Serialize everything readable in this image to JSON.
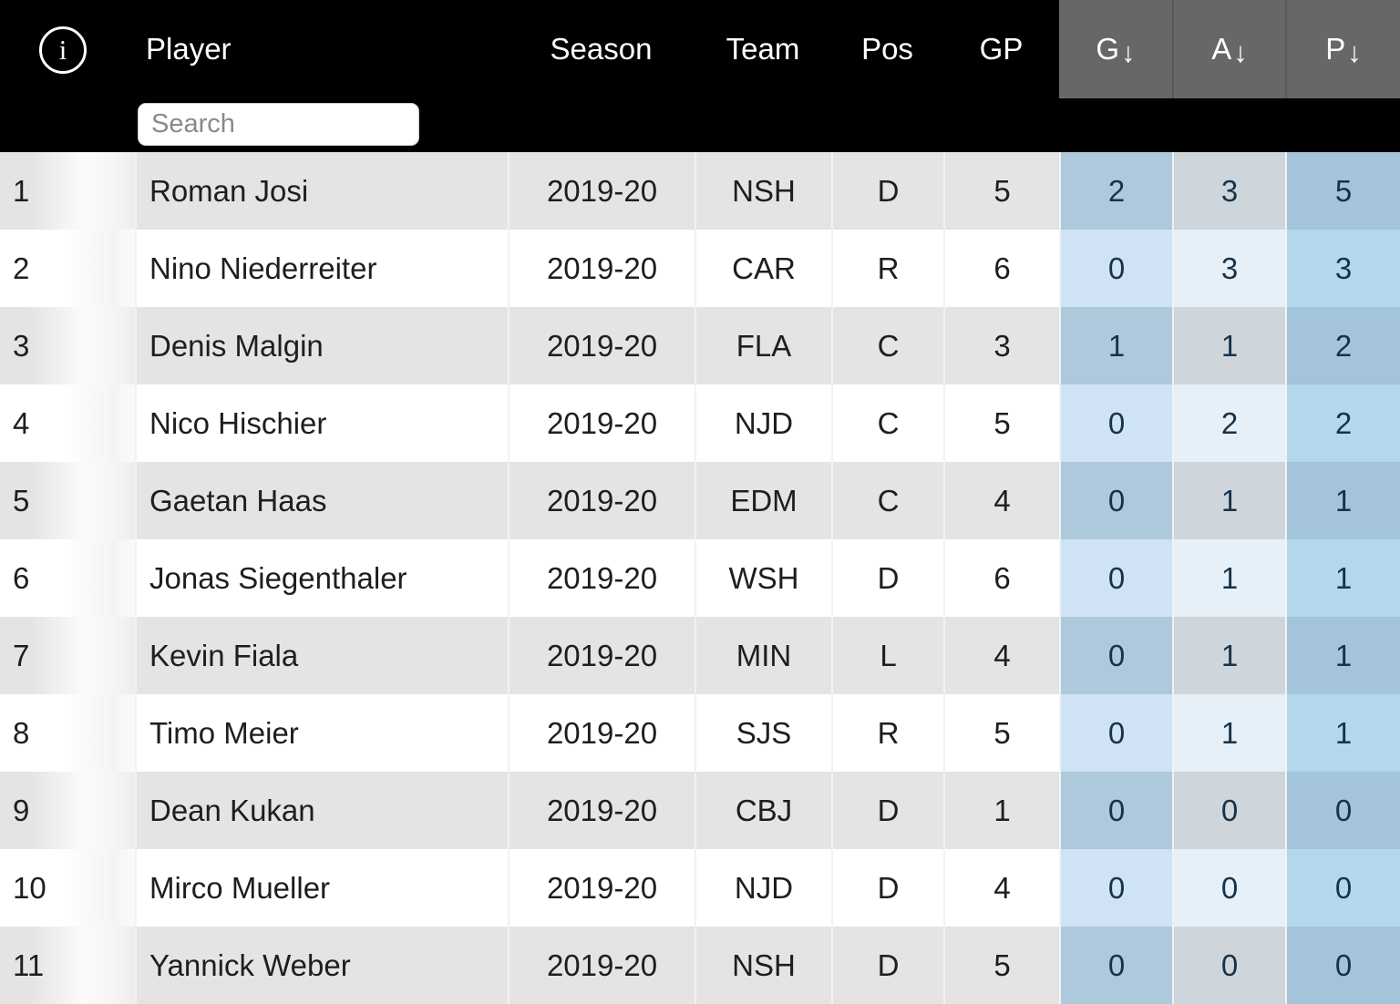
{
  "header": {
    "info_icon": "i",
    "search_placeholder": "Search",
    "columns": {
      "player": "Player",
      "season": "Season",
      "team": "Team",
      "pos": "Pos",
      "gp": "GP",
      "g": "G",
      "a": "A",
      "p": "P"
    },
    "sort_arrow": "↓",
    "sorted_columns": [
      "g",
      "a",
      "p"
    ]
  },
  "colors": {
    "header_bg": "#000000",
    "sort_header_bg": "#676767",
    "row_stripe": "#e4e4e4",
    "goals_col_even": "#cfe3f4",
    "goals_col_odd": "#aec9dc",
    "assists_col_even": "#e6f0f8",
    "assists_col_odd": "#ced6dc",
    "points_col_even": "#b5d7ec",
    "points_col_odd": "#a3c4db",
    "stat_text": "#16334a"
  },
  "rows": [
    {
      "rank": "1",
      "player": "Roman Josi",
      "season": "2019-20",
      "team": "NSH",
      "pos": "D",
      "gp": "5",
      "g": "2",
      "a": "3",
      "p": "5"
    },
    {
      "rank": "2",
      "player": "Nino Niederreiter",
      "season": "2019-20",
      "team": "CAR",
      "pos": "R",
      "gp": "6",
      "g": "0",
      "a": "3",
      "p": "3"
    },
    {
      "rank": "3",
      "player": "Denis Malgin",
      "season": "2019-20",
      "team": "FLA",
      "pos": "C",
      "gp": "3",
      "g": "1",
      "a": "1",
      "p": "2"
    },
    {
      "rank": "4",
      "player": "Nico Hischier",
      "season": "2019-20",
      "team": "NJD",
      "pos": "C",
      "gp": "5",
      "g": "0",
      "a": "2",
      "p": "2"
    },
    {
      "rank": "5",
      "player": "Gaetan Haas",
      "season": "2019-20",
      "team": "EDM",
      "pos": "C",
      "gp": "4",
      "g": "0",
      "a": "1",
      "p": "1"
    },
    {
      "rank": "6",
      "player": "Jonas Siegenthaler",
      "season": "2019-20",
      "team": "WSH",
      "pos": "D",
      "gp": "6",
      "g": "0",
      "a": "1",
      "p": "1"
    },
    {
      "rank": "7",
      "player": "Kevin Fiala",
      "season": "2019-20",
      "team": "MIN",
      "pos": "L",
      "gp": "4",
      "g": "0",
      "a": "1",
      "p": "1"
    },
    {
      "rank": "8",
      "player": "Timo Meier",
      "season": "2019-20",
      "team": "SJS",
      "pos": "R",
      "gp": "5",
      "g": "0",
      "a": "1",
      "p": "1"
    },
    {
      "rank": "9",
      "player": "Dean Kukan",
      "season": "2019-20",
      "team": "CBJ",
      "pos": "D",
      "gp": "1",
      "g": "0",
      "a": "0",
      "p": "0"
    },
    {
      "rank": "10",
      "player": "Mirco Mueller",
      "season": "2019-20",
      "team": "NJD",
      "pos": "D",
      "gp": "4",
      "g": "0",
      "a": "0",
      "p": "0"
    },
    {
      "rank": "11",
      "player": "Yannick Weber",
      "season": "2019-20",
      "team": "NSH",
      "pos": "D",
      "gp": "5",
      "g": "0",
      "a": "0",
      "p": "0"
    }
  ]
}
